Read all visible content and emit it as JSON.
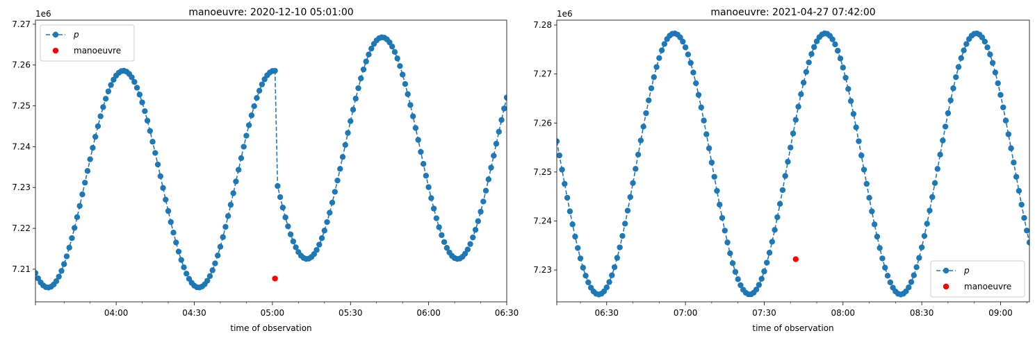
{
  "chart_data": [
    {
      "type": "line",
      "title": "manoeuvre: 2020-12-10 05:01:00",
      "xlabel": "time of observation",
      "ylabel": "",
      "offset_text": "1e6",
      "xlim": [
        "2020-12-10 03:29:00",
        "2020-12-10 06:30:00"
      ],
      "ylim": [
        7202000,
        7271000
      ],
      "x_ticks": [
        "04:00",
        "04:30",
        "05:00",
        "05:30",
        "06:00",
        "06:30"
      ],
      "y_ticks": [
        "7.21",
        "7.22",
        "7.23",
        "7.24",
        "7.25",
        "7.26",
        "7.27"
      ],
      "legend_position": "upper-left",
      "series": [
        {
          "name": "p",
          "style": "dashed line with circle markers",
          "color": "#1f77b4",
          "sample_interval_min": 1,
          "segments": [
            {
              "from": "03:29",
              "to": "05:01",
              "min": 7205500,
              "max": 7258600,
              "start_phase_deg": 150,
              "period_min": 57.9
            },
            {
              "from": "05:02",
              "to": "06:30",
              "min": 7212500,
              "max": 7266800,
              "start_phase_deg": 110,
              "period_min": 57.9
            }
          ]
        },
        {
          "name": "manoeuvre",
          "style": "marker",
          "color": "#ff0000",
          "x": [
            "05:01"
          ],
          "values": [
            7207700
          ]
        }
      ]
    },
    {
      "type": "line",
      "title": "manoeuvre: 2021-04-27 07:42:00",
      "xlabel": "time of observation",
      "ylabel": "",
      "offset_text": "1e6",
      "xlim": [
        "2021-04-27 06:11:00",
        "2021-04-27 09:11:00"
      ],
      "ylim": [
        7223500,
        7281000
      ],
      "x_ticks": [
        "06:30",
        "07:00",
        "07:30",
        "08:00",
        "08:30",
        "09:00"
      ],
      "y_ticks": [
        "7.23",
        "7.24",
        "7.25",
        "7.26",
        "7.27",
        "7.28"
      ],
      "legend_position": "lower-right",
      "series": [
        {
          "name": "p",
          "style": "dashed line with circle markers",
          "color": "#1f77b4",
          "sample_interval_min": 1,
          "segments": [
            {
              "from": "06:11",
              "to": "09:11",
              "min": 7225000,
              "max": 7278300,
              "start_phase_deg": 80,
              "period_min": 57.5
            }
          ]
        },
        {
          "name": "manoeuvre",
          "style": "marker",
          "color": "#ff0000",
          "x": [
            "07:42"
          ],
          "values": [
            7232200
          ]
        }
      ]
    }
  ]
}
